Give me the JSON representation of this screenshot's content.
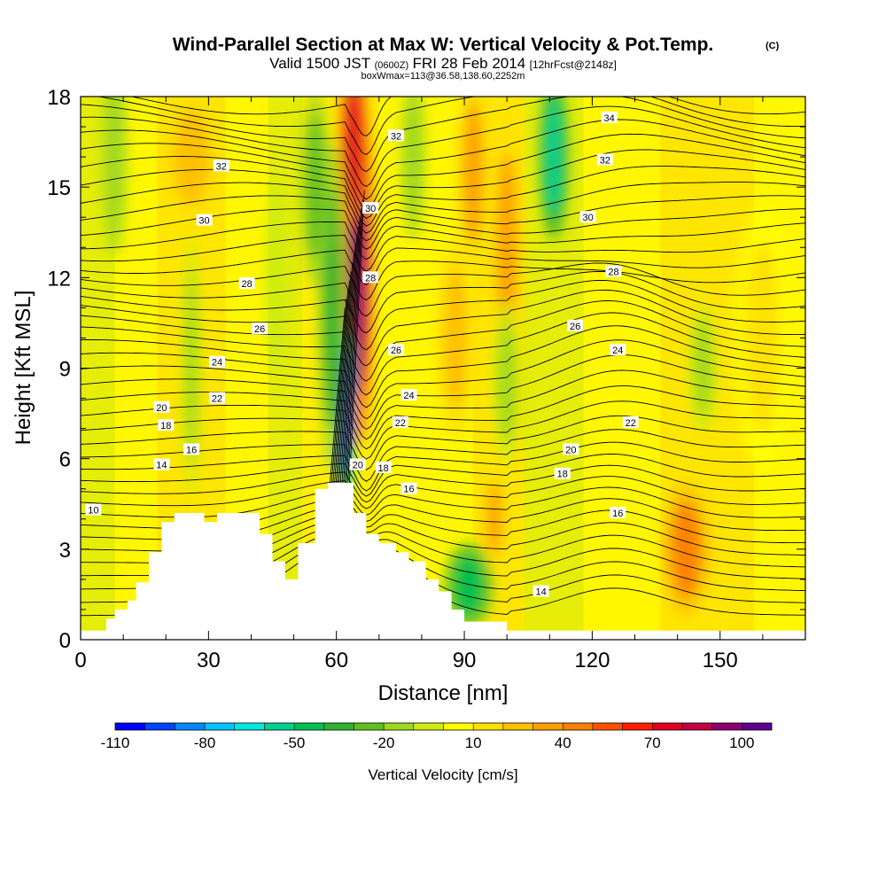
{
  "chart_data": {
    "type": "heatmap",
    "title": "Wind-Parallel Section at Max W: Vertical Velocity & Pot.Temp.",
    "copyright": "(C)",
    "subtitle": {
      "valid_label": "Valid 1500 JST",
      "utc_time": "(0600Z)",
      "date": "FRI 28 Feb 2014",
      "forecast": "[12hrFcst@2148z]"
    },
    "box_info": "boxWmax=113@36.58,138.60,2252m",
    "xlabel": "Distance [nm]",
    "ylabel": "Height [Kft MSL]",
    "xlim": [
      0,
      170
    ],
    "ylim": [
      0,
      18
    ],
    "x_ticks": [
      0,
      30,
      60,
      90,
      120,
      150
    ],
    "y_ticks": [
      0,
      3,
      6,
      9,
      12,
      15,
      18
    ],
    "colorbar": {
      "label": "Vertical Velocity [cm/s]",
      "tick_labels": [
        "-110",
        "-80",
        "-50",
        "-20",
        "10",
        "40",
        "70",
        "100"
      ],
      "tick_values": [
        -110,
        -80,
        -50,
        -20,
        10,
        40,
        70,
        100
      ],
      "range": [
        -110,
        110
      ],
      "colors": [
        "#0000ff",
        "#0044ff",
        "#0088ff",
        "#00c4ff",
        "#00e8e0",
        "#00d090",
        "#00c050",
        "#30b030",
        "#60c020",
        "#a0d820",
        "#d0ec10",
        "#ffff00",
        "#ffe000",
        "#ffc000",
        "#ffa000",
        "#ff8000",
        "#ff5000",
        "#ff2000",
        "#e00020",
        "#c00040",
        "#900070",
        "#600090"
      ]
    },
    "terrain": [
      [
        0,
        0.3
      ],
      [
        6,
        0.3
      ],
      [
        6,
        0.7
      ],
      [
        8,
        0.7
      ],
      [
        8,
        1.0
      ],
      [
        11,
        1.0
      ],
      [
        11,
        1.3
      ],
      [
        13,
        1.3
      ],
      [
        13,
        1.9
      ],
      [
        16,
        1.9
      ],
      [
        16,
        2.9
      ],
      [
        19,
        2.9
      ],
      [
        19,
        3.9
      ],
      [
        22,
        3.9
      ],
      [
        22,
        4.2
      ],
      [
        29,
        4.2
      ],
      [
        29,
        3.9
      ],
      [
        32,
        3.9
      ],
      [
        32,
        4.2
      ],
      [
        42,
        4.2
      ],
      [
        42,
        3.5
      ],
      [
        45,
        3.5
      ],
      [
        45,
        2.6
      ],
      [
        48,
        2.6
      ],
      [
        48,
        2.0
      ],
      [
        51,
        2.0
      ],
      [
        51,
        3.2
      ],
      [
        55,
        3.2
      ],
      [
        55,
        5.0
      ],
      [
        58,
        5.0
      ],
      [
        58,
        5.2
      ],
      [
        64,
        5.2
      ],
      [
        64,
        4.2
      ],
      [
        67,
        4.2
      ],
      [
        67,
        3.5
      ],
      [
        70,
        3.5
      ],
      [
        70,
        3.2
      ],
      [
        74,
        3.2
      ],
      [
        74,
        2.9
      ],
      [
        77,
        2.9
      ],
      [
        77,
        2.6
      ],
      [
        81,
        2.6
      ],
      [
        81,
        2.0
      ],
      [
        84,
        2.0
      ],
      [
        84,
        1.6
      ],
      [
        87,
        1.6
      ],
      [
        87,
        1.0
      ],
      [
        90,
        1.0
      ],
      [
        90,
        0.6
      ],
      [
        100,
        0.6
      ],
      [
        100,
        0.3
      ],
      [
        170,
        0.3
      ]
    ],
    "isentrope_labels": [
      {
        "text": "10",
        "x": 3,
        "y": 4.3
      },
      {
        "text": "14",
        "x": 19,
        "y": 5.8
      },
      {
        "text": "16",
        "x": 26,
        "y": 6.3
      },
      {
        "text": "18",
        "x": 20,
        "y": 7.1
      },
      {
        "text": "20",
        "x": 19,
        "y": 7.7
      },
      {
        "text": "22",
        "x": 32,
        "y": 8.0
      },
      {
        "text": "24",
        "x": 32,
        "y": 9.2
      },
      {
        "text": "26",
        "x": 42,
        "y": 10.3
      },
      {
        "text": "28",
        "x": 39,
        "y": 11.8
      },
      {
        "text": "30",
        "x": 29,
        "y": 13.9
      },
      {
        "text": "32",
        "x": 33,
        "y": 15.7
      },
      {
        "text": "32",
        "x": 74,
        "y": 16.7
      },
      {
        "text": "30",
        "x": 68,
        "y": 14.3
      },
      {
        "text": "28",
        "x": 68,
        "y": 12.0
      },
      {
        "text": "26",
        "x": 74,
        "y": 9.6
      },
      {
        "text": "24",
        "x": 77,
        "y": 8.1
      },
      {
        "text": "22",
        "x": 75,
        "y": 7.2
      },
      {
        "text": "20",
        "x": 65,
        "y": 5.8
      },
      {
        "text": "18",
        "x": 71,
        "y": 5.7
      },
      {
        "text": "16",
        "x": 77,
        "y": 5.0
      },
      {
        "text": "14",
        "x": 108,
        "y": 1.6
      },
      {
        "text": "16",
        "x": 126,
        "y": 4.2
      },
      {
        "text": "18",
        "x": 113,
        "y": 5.5
      },
      {
        "text": "20",
        "x": 115,
        "y": 6.3
      },
      {
        "text": "22",
        "x": 129,
        "y": 7.2
      },
      {
        "text": "24",
        "x": 126,
        "y": 9.6
      },
      {
        "text": "26",
        "x": 116,
        "y": 10.4
      },
      {
        "text": "28",
        "x": 125,
        "y": 12.2
      },
      {
        "text": "30",
        "x": 119,
        "y": 14.0
      },
      {
        "text": "32",
        "x": 123,
        "y": 15.9
      },
      {
        "text": "34",
        "x": 124,
        "y": 17.3
      }
    ],
    "velocity_features": [
      {
        "x": 65,
        "y": 12.5,
        "rx": 3,
        "ry": 5.5,
        "w": 95
      },
      {
        "x": 64,
        "y": 16.5,
        "rx": 3,
        "ry": 2.5,
        "w": 75
      },
      {
        "x": 62,
        "y": 7.5,
        "rx": 2,
        "ry": 2.6,
        "w": -110
      },
      {
        "x": 59,
        "y": 11,
        "rx": 3,
        "ry": 5,
        "w": -35
      },
      {
        "x": 55,
        "y": 15,
        "rx": 3,
        "ry": 3,
        "w": -25
      },
      {
        "x": 78,
        "y": 16,
        "rx": 2.5,
        "ry": 2.5,
        "w": -20
      },
      {
        "x": 91,
        "y": 1.8,
        "rx": 5,
        "ry": 1.3,
        "w": -50
      },
      {
        "x": 111,
        "y": 16,
        "rx": 3,
        "ry": 2.5,
        "w": -55
      },
      {
        "x": 100,
        "y": 13,
        "rx": 3.5,
        "ry": 4,
        "w": 30
      },
      {
        "x": 92,
        "y": 15.5,
        "rx": 3.5,
        "ry": 3,
        "w": 30
      },
      {
        "x": 97,
        "y": 4,
        "rx": 2.5,
        "ry": 1.5,
        "w": 35
      },
      {
        "x": 142,
        "y": 3,
        "rx": 5,
        "ry": 2,
        "w": 45
      },
      {
        "x": 26,
        "y": 16,
        "rx": 6,
        "ry": 2,
        "w": 25
      },
      {
        "x": 88,
        "y": 10,
        "rx": 4,
        "ry": 3,
        "w": 20
      },
      {
        "x": 160,
        "y": 10,
        "rx": 6,
        "ry": 4,
        "w": 15
      },
      {
        "x": 8,
        "y": 16,
        "rx": 2.5,
        "ry": 3,
        "w": -20
      },
      {
        "x": 26,
        "y": 9,
        "rx": 2,
        "ry": 4,
        "w": -15
      },
      {
        "x": 100,
        "y": 8.5,
        "rx": 3,
        "ry": 2.5,
        "w": -15
      },
      {
        "x": 146,
        "y": 9,
        "rx": 3,
        "ry": 2,
        "w": -15
      },
      {
        "x": 46,
        "y": 12,
        "rx": 2.5,
        "ry": 3,
        "w": -10
      }
    ]
  }
}
